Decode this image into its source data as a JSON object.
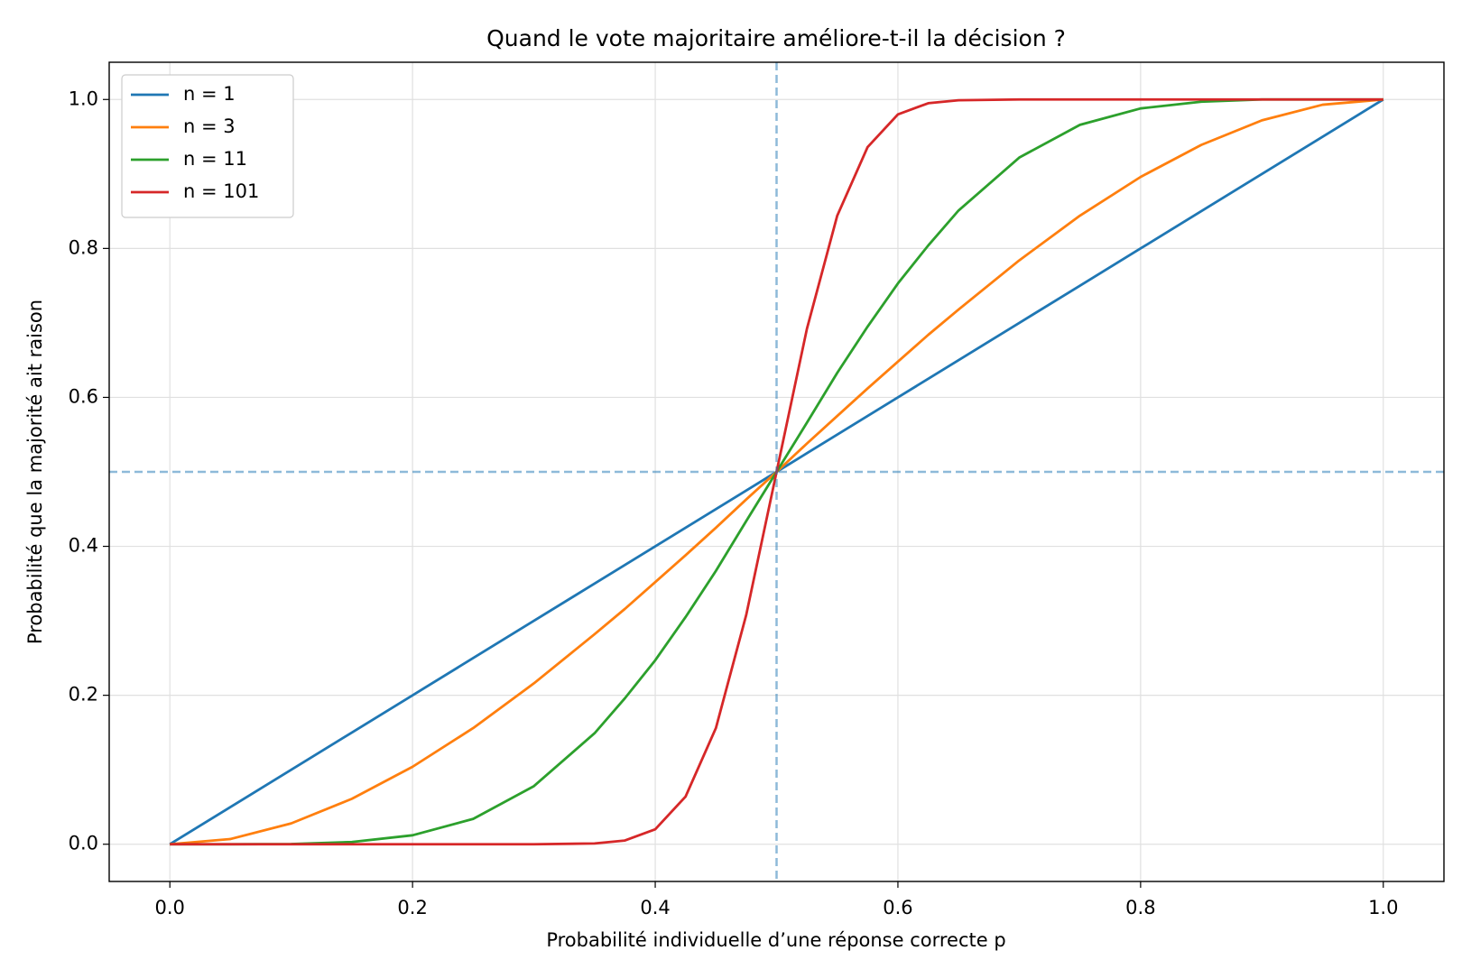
{
  "chart_data": {
    "type": "line",
    "title": "Quand le vote majoritaire améliore-t-il la décision ?",
    "x_label": "Probabilité individuelle d’une réponse correcte p",
    "y_label": "Probabilité que la majorité ait raison",
    "x": [
      0,
      0.05,
      0.1,
      0.15,
      0.2,
      0.25,
      0.3,
      0.35,
      0.375,
      0.4,
      0.425,
      0.45,
      0.475,
      0.5,
      0.525,
      0.55,
      0.575,
      0.6,
      0.625,
      0.65,
      0.7,
      0.75,
      0.8,
      0.85,
      0.9,
      0.95,
      1
    ],
    "series": [
      {
        "name": "n = 1",
        "color": "#1f77b4",
        "values": [
          0,
          0.05,
          0.1,
          0.15,
          0.2,
          0.25,
          0.3,
          0.35,
          0.375,
          0.4,
          0.425,
          0.45,
          0.475,
          0.5,
          0.525,
          0.55,
          0.575,
          0.6,
          0.625,
          0.65,
          0.7,
          0.75,
          0.8,
          0.85,
          0.9,
          0.95,
          1
        ]
      },
      {
        "name": "n = 3",
        "color": "#ff7f0e",
        "values": [
          0,
          0.007,
          0.028,
          0.061,
          0.104,
          0.156,
          0.216,
          0.282,
          0.316,
          0.352,
          0.388,
          0.425,
          0.463,
          0.5,
          0.538,
          0.575,
          0.612,
          0.648,
          0.684,
          0.718,
          0.784,
          0.844,
          0.896,
          0.939,
          0.972,
          0.993,
          1
        ]
      },
      {
        "name": "n = 11",
        "color": "#2ca02c",
        "values": [
          0,
          0,
          0.0003,
          0.003,
          0.012,
          0.034,
          0.078,
          0.149,
          0.196,
          0.247,
          0.305,
          0.367,
          0.434,
          0.5,
          0.566,
          0.633,
          0.695,
          0.753,
          0.804,
          0.851,
          0.922,
          0.966,
          0.988,
          0.997,
          1,
          1,
          1
        ]
      },
      {
        "name": "n = 101",
        "color": "#d62728",
        "values": [
          0,
          0,
          0,
          0,
          0,
          0,
          0,
          0.001,
          0.005,
          0.02,
          0.064,
          0.156,
          0.308,
          0.5,
          0.692,
          0.844,
          0.936,
          0.98,
          0.995,
          0.999,
          1,
          1,
          1,
          1,
          1,
          1,
          1
        ]
      }
    ],
    "xlim": [
      -0.05,
      1.05
    ],
    "ylim": [
      -0.05,
      1.05
    ],
    "xticks": [
      {
        "value": 0,
        "label": "0.0"
      },
      0.2,
      0.4,
      0.6,
      0.8,
      {
        "value": 1,
        "label": "1.0"
      }
    ],
    "yticks": [
      {
        "value": 0,
        "label": "0.0"
      },
      0.2,
      0.4,
      0.6,
      0.8,
      {
        "value": 1,
        "label": "1.0"
      }
    ],
    "grid": true,
    "legend": "upper-left",
    "reference_lines": {
      "x": 0.5,
      "y": 0.5,
      "color": "#1f77b4"
    }
  }
}
